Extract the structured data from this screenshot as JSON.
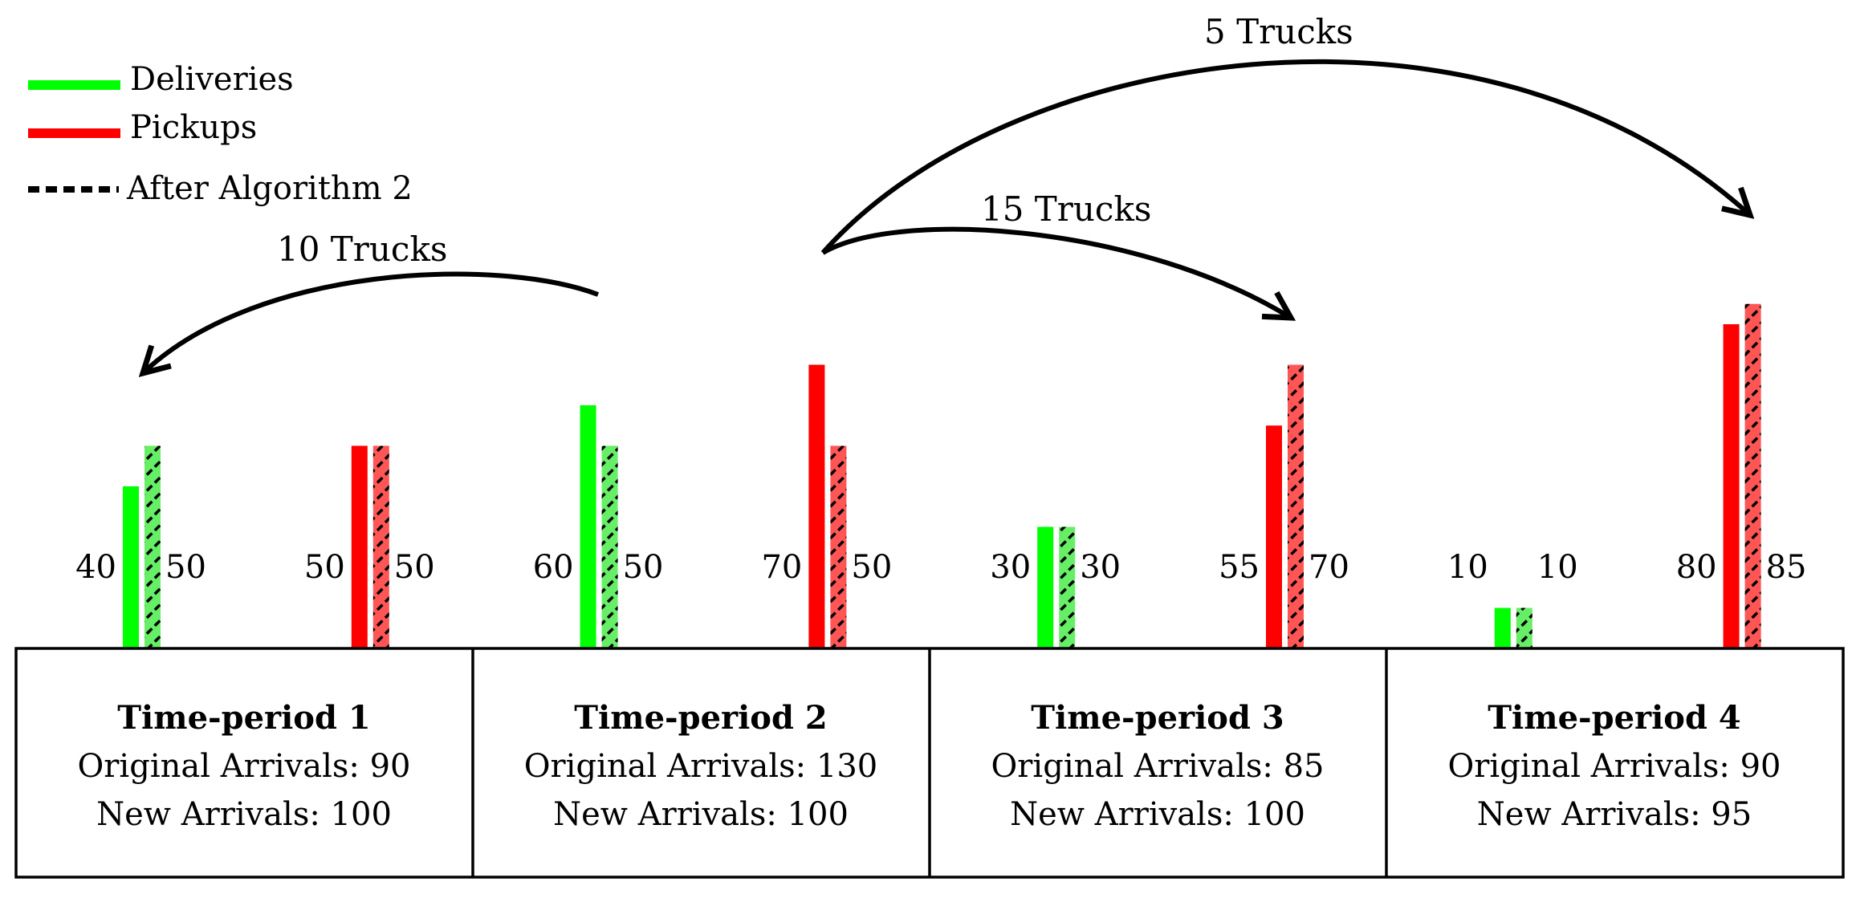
{
  "legend": {
    "deliveries": {
      "label": "Deliveries",
      "color": "#00ff00"
    },
    "pickups": {
      "label": "Pickups",
      "color": "#ff0000"
    },
    "after": {
      "label": "After Algorithm 2"
    }
  },
  "colors": {
    "hatched_delivery": "#66ee66",
    "hatched_pickup": "#ff5555",
    "stroke": "#000000"
  },
  "chart_data": {
    "type": "bar",
    "ylim": [
      0,
      85
    ],
    "bars": [
      {
        "kind": "deliveries",
        "before": 40,
        "after": 50,
        "before_label": "40",
        "after_label": "50"
      },
      {
        "kind": "pickups",
        "before": 50,
        "after": 50,
        "before_label": "50",
        "after_label": "50"
      },
      {
        "kind": "deliveries",
        "before": 60,
        "after": 50,
        "before_label": "60",
        "after_label": "50"
      },
      {
        "kind": "pickups",
        "before": 70,
        "after": 50,
        "before_label": "70",
        "after_label": "50"
      },
      {
        "kind": "deliveries",
        "before": 30,
        "after": 30,
        "before_label": "30",
        "after_label": "30"
      },
      {
        "kind": "pickups",
        "before": 55,
        "after": 70,
        "before_label": "55",
        "after_label": "70"
      },
      {
        "kind": "deliveries",
        "before": 10,
        "after": 10,
        "before_label": "10",
        "after_label": "10"
      },
      {
        "kind": "pickups",
        "before": 80,
        "after": 85,
        "before_label": "80",
        "after_label": "85"
      }
    ],
    "shifts": [
      {
        "label": "10 Trucks",
        "from_bar": 2,
        "to_bar": 0
      },
      {
        "label": "15 Trucks",
        "from_bar": 3,
        "to_bar": 5
      },
      {
        "label": "5 Trucks",
        "from_bar": 3,
        "to_bar": 7
      }
    ]
  },
  "periods": [
    {
      "title": "Time-period 1",
      "original": "Original Arrivals: 90",
      "new": "New Arrivals: 100"
    },
    {
      "title": "Time-period 2",
      "original": "Original Arrivals: 130",
      "new": "New Arrivals: 100"
    },
    {
      "title": "Time-period 3",
      "original": "Original Arrivals: 85",
      "new": "New Arrivals: 100"
    },
    {
      "title": "Time-period 4",
      "original": "Original Arrivals: 90",
      "new": "New Arrivals: 95"
    }
  ]
}
